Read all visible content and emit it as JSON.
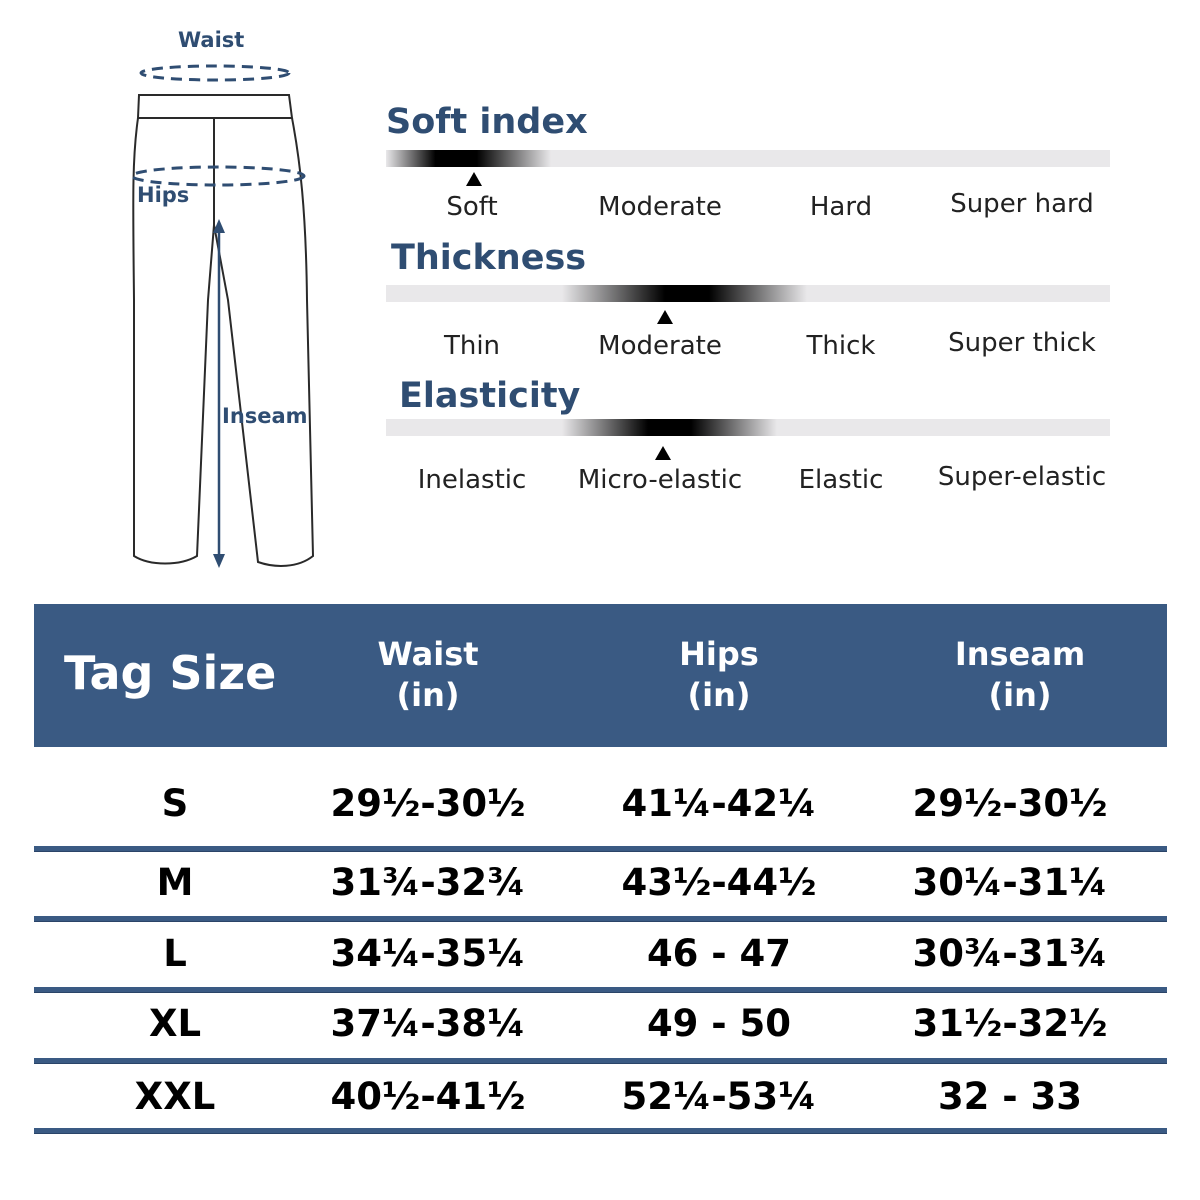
{
  "diagram": {
    "labels": {
      "waist": "Waist",
      "hips": "Hips",
      "inseam": "Inseam"
    },
    "colors": {
      "outline": "#2a2a2a",
      "measure": "#2f4d72"
    }
  },
  "scales": [
    {
      "title": "Soft index",
      "options": [
        "Soft",
        "Moderate",
        "Hard",
        "Super hard"
      ],
      "selected_index": 0
    },
    {
      "title": "Thickness",
      "options": [
        "Thin",
        "Moderate",
        "Thick",
        "Super thick"
      ],
      "selected_index": 1
    },
    {
      "title": "Elasticity",
      "options": [
        "Inelastic",
        "Micro-elastic",
        "Elastic",
        "Super-elastic"
      ],
      "selected_index": 1
    }
  ],
  "table": {
    "headers": {
      "tag_size": "Tag Size",
      "waist": [
        "Waist",
        "(in)"
      ],
      "hips": [
        "Hips",
        "(in)"
      ],
      "inseam": [
        "Inseam",
        "(in)"
      ]
    },
    "rows": [
      {
        "size": "S",
        "waist": "29½-30½",
        "hips": "41¼-42¼",
        "inseam": "29½-30½"
      },
      {
        "size": "M",
        "waist": "31¾-32¾",
        "hips": "43½-44½",
        "inseam": "30¼-31¼"
      },
      {
        "size": "L",
        "waist": "34¼-35¼",
        "hips": "46 - 47",
        "inseam": "30¾-31¾"
      },
      {
        "size": "XL",
        "waist": "37¼-38¼",
        "hips": "49 - 50",
        "inseam": "31½-32½"
      },
      {
        "size": "XXL",
        "waist": "40½-41½",
        "hips": "52¼-53¼",
        "inseam": "32 - 33"
      }
    ]
  },
  "colors": {
    "header_bg": "#3a5a83",
    "accent": "#2f4d72",
    "bar_bg": "#e9e8ea"
  }
}
